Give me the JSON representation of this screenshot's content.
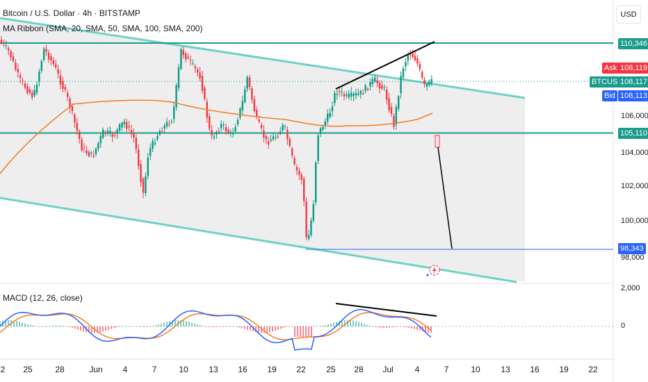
{
  "header": {
    "title": "Bitcoin / U.S. Dollar · 4h · BITSTAMP",
    "indicator": "MA Ribbon (SMA, 20, SMA, 50, SMA, 100, SMA, 200)",
    "macd_label": "MACD (12, 26, close)"
  },
  "currency_button": "USD",
  "price_axis": {
    "ticks": [
      {
        "label": "106,000",
        "value": 106000
      },
      {
        "label": "104,000",
        "value": 104000
      },
      {
        "label": "102,000",
        "value": 102000
      },
      {
        "label": "100,000",
        "value": 100000
      }
    ],
    "partial_tick": "98,000",
    "macd_ticks": [
      {
        "label": "2,000",
        "value": 2000
      },
      {
        "label": "0",
        "value": 0
      }
    ]
  },
  "tags": {
    "resistance": {
      "label": "110,346",
      "value": 110346
    },
    "ask_label": "Ask",
    "ask": {
      "label": "108,119",
      "value": 108119
    },
    "symbol": "BTCUSD",
    "last": {
      "label": "108,117",
      "value": 108117
    },
    "bid_label": "Bid",
    "bid": {
      "label": "108,113",
      "value": 108113
    },
    "support": {
      "label": "105,110",
      "value": 105110
    },
    "target": {
      "label": "98,343",
      "value": 98343
    }
  },
  "time_axis": [
    "2",
    "25",
    "28",
    "Jun",
    "4",
    "7",
    "10",
    "13",
    "16",
    "19",
    "22",
    "25",
    "28",
    "Jul",
    "4",
    "7",
    "10",
    "13",
    "16",
    "19",
    "22"
  ],
  "colors": {
    "up": "#089981",
    "down": "#f23645",
    "channel": "#6fd2c2",
    "level": "#1a9c8c",
    "ma": "#f57c22",
    "macd_line": "#2962ff",
    "signal_line": "#f57c22",
    "target_line": "#2962ff",
    "annotation": "#000000"
  },
  "icons": [
    "bolt-alert-icon"
  ]
}
